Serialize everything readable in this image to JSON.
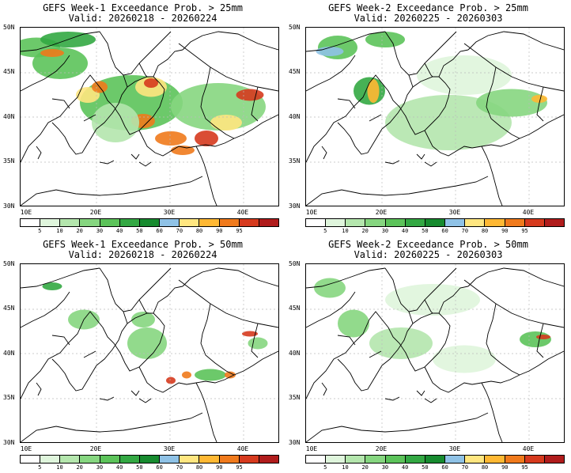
{
  "panels": [
    {
      "title": "GEFS Week-1 Exceedance Prob. > 25mm",
      "valid": "Valid: 20260218 - 20260224",
      "id": "w1_25"
    },
    {
      "title": "GEFS Week-2 Exceedance Prob. > 25mm",
      "valid": "Valid: 20260225 - 20260303",
      "id": "w2_25"
    },
    {
      "title": "GEFS Week-1 Exceedance Prob. > 50mm",
      "valid": "Valid: 20260218 - 20260224",
      "id": "w1_50"
    },
    {
      "title": "GEFS Week-2 Exceedance Prob. > 50mm",
      "valid": "Valid: 20260225 - 20260303",
      "id": "w2_50"
    }
  ],
  "lat_labels": [
    "50N",
    "45N",
    "40N",
    "35N",
    "30N"
  ],
  "lon_labels": [
    "10E",
    "20E",
    "30E",
    "40E"
  ],
  "colorbar": {
    "levels": [
      "5",
      "10",
      "20",
      "30",
      "40",
      "50",
      "60",
      "70",
      "80",
      "90",
      "95"
    ],
    "colors": [
      "#ffffff",
      "#dff5dc",
      "#b4e6ad",
      "#86d680",
      "#5cc35a",
      "#33a843",
      "#178b2f",
      "#8fc2e6",
      "#ffe680",
      "#ffb833",
      "#f07a1c",
      "#d63a1e",
      "#b01c1c"
    ]
  }
}
